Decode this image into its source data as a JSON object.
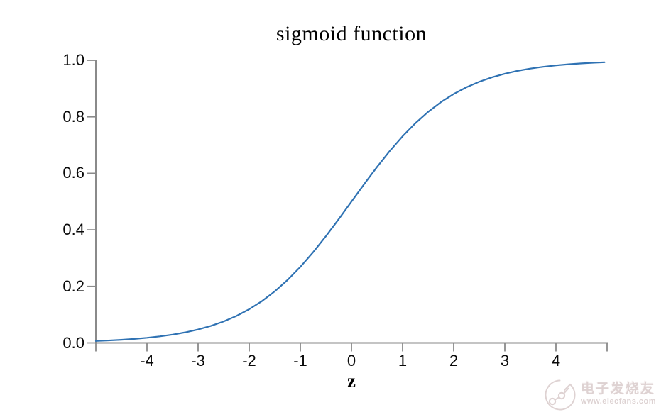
{
  "colors": {
    "background": "#ffffff",
    "axis": "#8a8a8a",
    "tick_label": "#0a0a0a",
    "curve": "#2f72b3",
    "watermark": "#ded2d2"
  },
  "chart_data": {
    "type": "line",
    "title": "sigmoid function",
    "xlabel": "z",
    "ylabel": "",
    "xlim": [
      -5,
      5
    ],
    "ylim": [
      0,
      1
    ],
    "grid": false,
    "legend": "none",
    "x_ticks": [
      -5,
      -4,
      -3,
      -2,
      -1,
      0,
      1,
      2,
      3,
      4,
      5
    ],
    "x_tick_labels": [
      "",
      "-4",
      "-3",
      "-2",
      "-1",
      "0",
      "1",
      "2",
      "3",
      "4",
      ""
    ],
    "y_ticks": [
      0.0,
      0.2,
      0.4,
      0.6,
      0.8,
      1.0
    ],
    "y_tick_labels": [
      "0.0",
      "0.2",
      "0.4",
      "0.6",
      "0.8",
      "1.0"
    ],
    "series": [
      {
        "name": "sigmoid",
        "color": "#2f72b3",
        "x": [
          -5.0,
          -4.75,
          -4.5,
          -4.25,
          -4.0,
          -3.75,
          -3.5,
          -3.25,
          -3.0,
          -2.75,
          -2.5,
          -2.25,
          -2.0,
          -1.75,
          -1.5,
          -1.25,
          -1.0,
          -0.75,
          -0.5,
          -0.25,
          0.0,
          0.25,
          0.5,
          0.75,
          1.0,
          1.25,
          1.5,
          1.75,
          2.0,
          2.25,
          2.5,
          2.75,
          3.0,
          3.25,
          3.5,
          3.75,
          4.0,
          4.25,
          4.5,
          4.75,
          4.95
        ],
        "y": [
          0.0067,
          0.0086,
          0.011,
          0.0141,
          0.018,
          0.023,
          0.0293,
          0.0373,
          0.0474,
          0.0601,
          0.0759,
          0.0953,
          0.1192,
          0.148,
          0.1824,
          0.2227,
          0.2689,
          0.3208,
          0.3775,
          0.4378,
          0.5,
          0.5622,
          0.6225,
          0.6792,
          0.7311,
          0.7773,
          0.8176,
          0.852,
          0.8808,
          0.9047,
          0.9241,
          0.9399,
          0.9526,
          0.9627,
          0.9707,
          0.977,
          0.982,
          0.9859,
          0.989,
          0.9914,
          0.993
        ]
      }
    ]
  },
  "watermark": {
    "brand": "电子发烧友",
    "site": "www.elecfans.com"
  }
}
